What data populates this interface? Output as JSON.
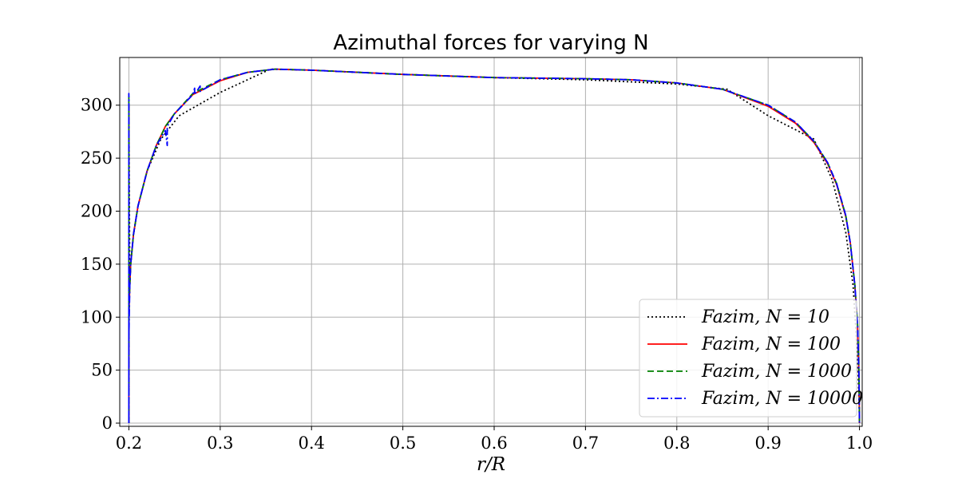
{
  "chart_data": {
    "type": "line",
    "title": "Azimuthal forces for varying N",
    "xlabel": "r/R",
    "ylabel": "",
    "xlim": [
      0.19,
      1.003
    ],
    "ylim": [
      -3,
      345
    ],
    "xticks": [
      0.2,
      0.3,
      0.4,
      0.5,
      0.6,
      0.7,
      0.8,
      0.9,
      1.0
    ],
    "xtick_labels": [
      "0.2",
      "0.3",
      "0.4",
      "0.5",
      "0.6",
      "0.7",
      "0.8",
      "0.9",
      "1.0"
    ],
    "yticks": [
      0,
      50,
      100,
      150,
      200,
      250,
      300
    ],
    "ytick_labels": [
      "0",
      "50",
      "100",
      "150",
      "200",
      "250",
      "300"
    ],
    "grid": true,
    "legend_position": "lower-right",
    "series": [
      {
        "name": "F_azim, N = 10",
        "legend_label": "Fazim, N = 10",
        "color": "#000000",
        "style": "dotted",
        "x": [
          0.2,
          0.2,
          0.2,
          0.2,
          0.2,
          0.2,
          0.2,
          0.201,
          0.202,
          0.205,
          0.21,
          0.22,
          0.235,
          0.255,
          0.3,
          0.355,
          0.4,
          0.5,
          0.6,
          0.7,
          0.8,
          0.855,
          0.9,
          0.95,
          0.97,
          0.985,
          0.993,
          0.998,
          0.9995,
          1.0
        ],
        "values": [
          0,
          50,
          100,
          150,
          200,
          250,
          300,
          130,
          150,
          178,
          205,
          238,
          268,
          290,
          312,
          334,
          333,
          329,
          326,
          324,
          320,
          315,
          290,
          268,
          230,
          180,
          130,
          60,
          20,
          0
        ]
      },
      {
        "name": "F_azim, N = 100",
        "legend_label": "Fazim, N = 100",
        "color": "#ff0000",
        "style": "solid",
        "x": [
          0.2,
          0.2,
          0.2,
          0.2,
          0.2,
          0.201,
          0.202,
          0.205,
          0.21,
          0.22,
          0.23,
          0.24,
          0.25,
          0.27,
          0.3,
          0.33,
          0.36,
          0.4,
          0.5,
          0.6,
          0.7,
          0.75,
          0.8,
          0.85,
          0.9,
          0.93,
          0.95,
          0.965,
          0.975,
          0.985,
          0.99,
          0.995,
          0.998,
          0.9995,
          1.0
        ],
        "values": [
          0,
          100,
          300,
          80,
          100,
          130,
          150,
          178,
          205,
          238,
          262,
          280,
          292,
          310,
          323,
          331,
          334,
          333,
          329,
          326,
          325,
          324,
          321,
          315,
          299,
          283,
          265,
          245,
          225,
          195,
          170,
          130,
          90,
          40,
          0
        ]
      },
      {
        "name": "F_azim, N = 1000",
        "legend_label": "Fazim, N = 1000",
        "color": "#008000",
        "style": "dashed",
        "x": [
          0.2,
          0.2,
          0.2,
          0.2,
          0.2,
          0.201,
          0.202,
          0.205,
          0.21,
          0.22,
          0.23,
          0.24,
          0.25,
          0.27,
          0.3,
          0.33,
          0.36,
          0.4,
          0.5,
          0.6,
          0.7,
          0.75,
          0.8,
          0.85,
          0.9,
          0.93,
          0.95,
          0.965,
          0.975,
          0.985,
          0.99,
          0.995,
          0.998,
          0.9995,
          1.0
        ],
        "values": [
          0,
          100,
          308,
          80,
          100,
          130,
          150,
          178,
          205,
          238,
          262,
          280,
          292,
          311,
          324,
          331,
          334,
          333,
          329,
          326,
          325,
          324,
          321,
          315,
          300,
          284,
          266,
          246,
          226,
          196,
          170,
          130,
          92,
          42,
          0
        ]
      },
      {
        "name": "F_azim, N = 10000",
        "legend_label": "Fazim, N = 10000",
        "color": "#0000ff",
        "style": "dashdot",
        "x": [
          0.2,
          0.2,
          0.2,
          0.2,
          0.2,
          0.2,
          0.201,
          0.202,
          0.205,
          0.21,
          0.22,
          0.23,
          0.24,
          0.242,
          0.242,
          0.242,
          0.25,
          0.27,
          0.272,
          0.272,
          0.278,
          0.278,
          0.3,
          0.33,
          0.36,
          0.4,
          0.5,
          0.6,
          0.7,
          0.75,
          0.8,
          0.85,
          0.9,
          0.93,
          0.95,
          0.965,
          0.975,
          0.985,
          0.99,
          0.995,
          0.998,
          0.9995,
          1.0
        ],
        "values": [
          0,
          311,
          0,
          60,
          90,
          80,
          130,
          150,
          178,
          205,
          238,
          262,
          276,
          262,
          280,
          280,
          292,
          310,
          316,
          310,
          318,
          313,
          324,
          331,
          334,
          333,
          329,
          326,
          325,
          324,
          321,
          315,
          300,
          284,
          266,
          246,
          226,
          196,
          170,
          130,
          92,
          42,
          0
        ]
      }
    ]
  }
}
